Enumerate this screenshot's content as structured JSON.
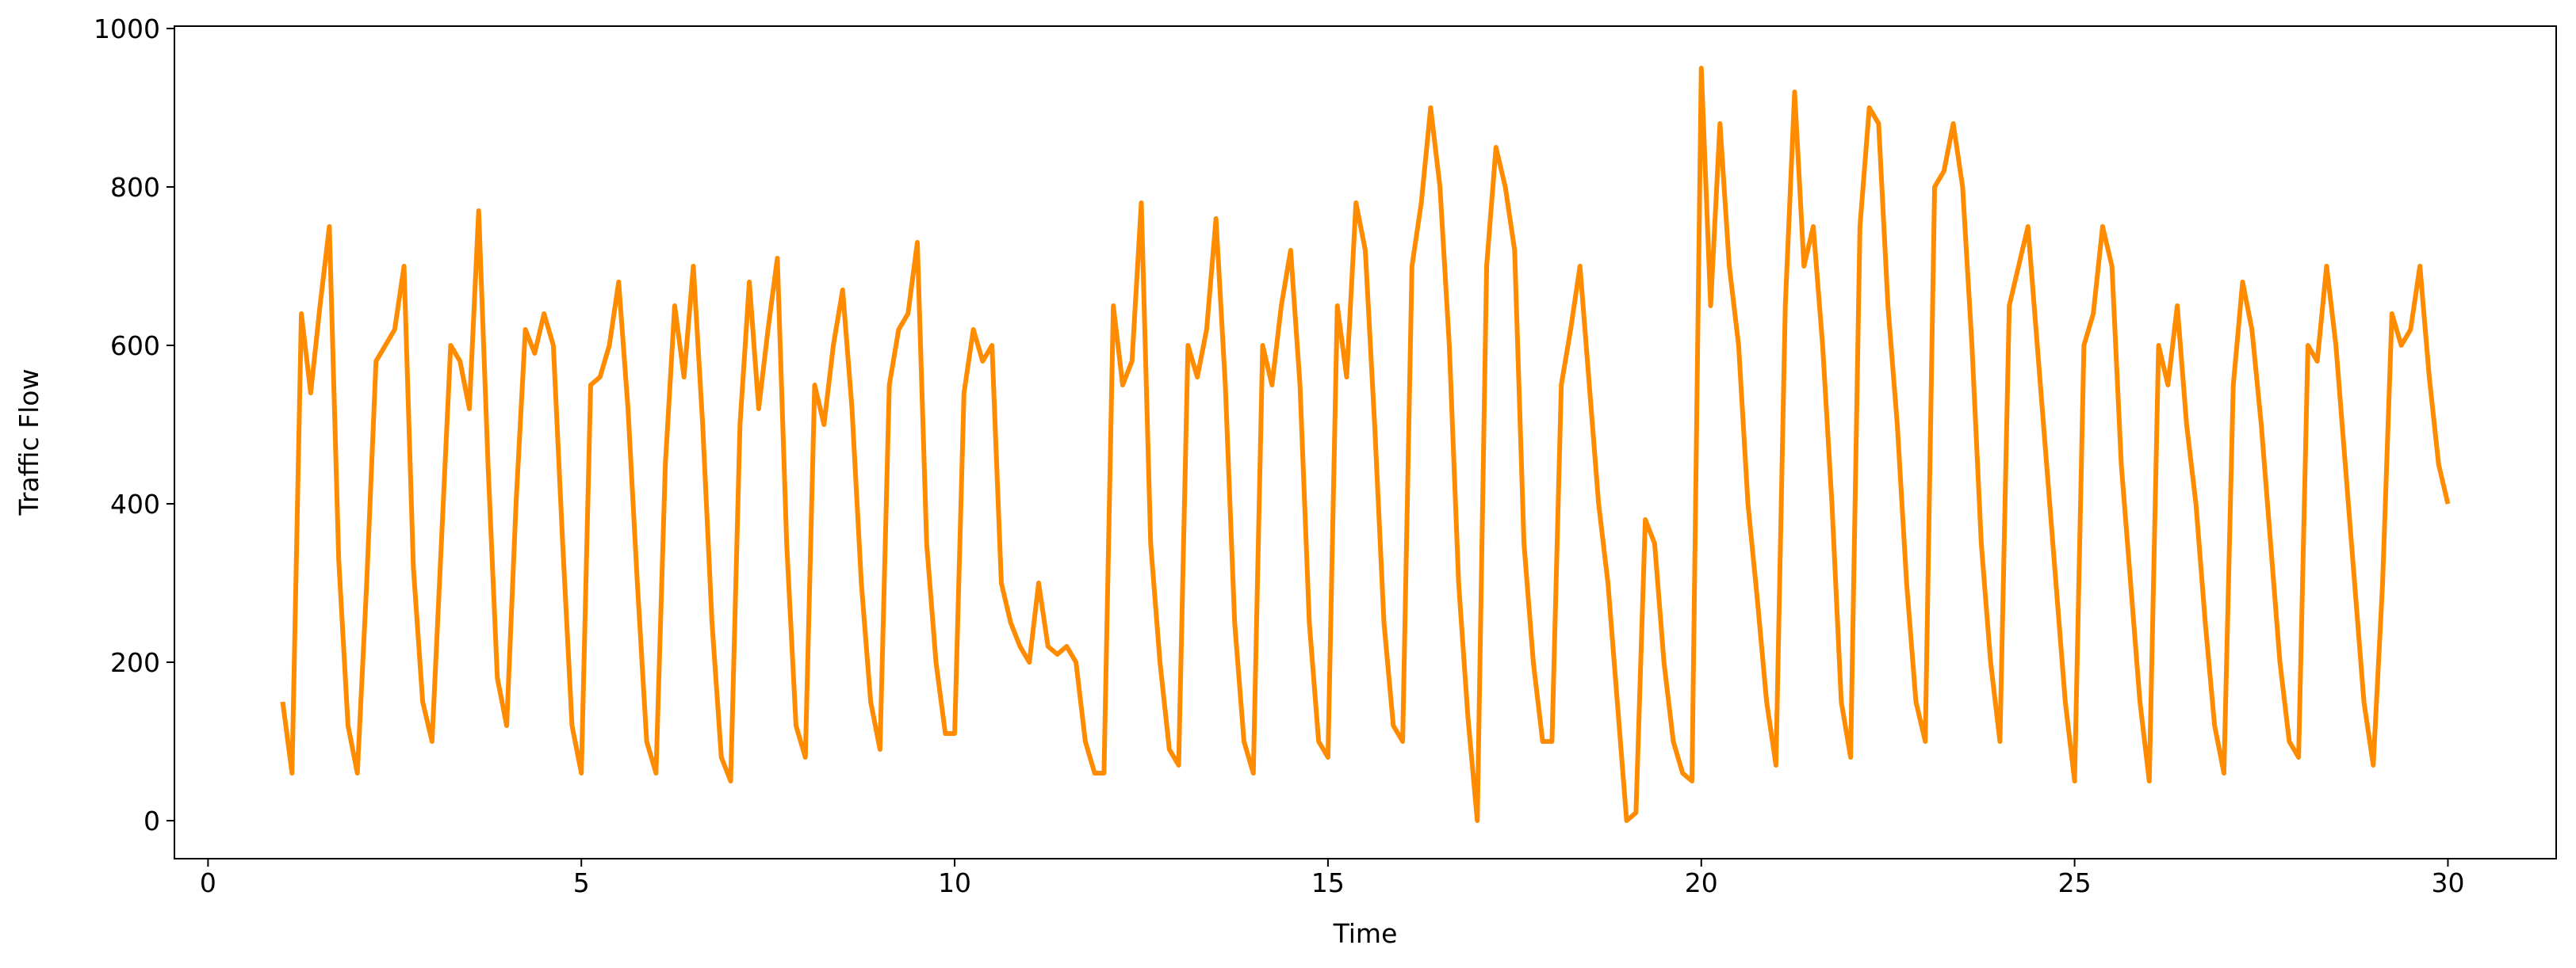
{
  "chart_data": {
    "type": "line",
    "x_label": "Time",
    "y_label": "Traffic Flow",
    "color": "#ff8c00",
    "xlim": [
      -0.45,
      31.45
    ],
    "ylim": [
      -48,
      1003
    ],
    "xticks": [
      0,
      5,
      10,
      15,
      20,
      25,
      30
    ],
    "yticks": [
      0,
      200,
      400,
      600,
      800,
      1000
    ],
    "x": [
      1,
      1.125,
      1.25,
      1.375,
      1.5,
      1.625,
      1.75,
      1.875,
      2,
      2.125,
      2.25,
      2.375,
      2.5,
      2.625,
      2.75,
      2.875,
      3,
      3.125,
      3.25,
      3.375,
      3.5,
      3.625,
      3.75,
      3.875,
      4,
      4.125,
      4.25,
      4.375,
      4.5,
      4.625,
      4.75,
      4.875,
      5,
      5.125,
      5.25,
      5.375,
      5.5,
      5.625,
      5.75,
      5.875,
      6,
      6.125,
      6.25,
      6.375,
      6.5,
      6.625,
      6.75,
      6.875,
      7,
      7.125,
      7.25,
      7.375,
      7.5,
      7.625,
      7.75,
      7.875,
      8,
      8.125,
      8.25,
      8.375,
      8.5,
      8.625,
      8.75,
      8.875,
      9,
      9.125,
      9.25,
      9.375,
      9.5,
      9.625,
      9.75,
      9.875,
      10,
      10.125,
      10.25,
      10.375,
      10.5,
      10.625,
      10.75,
      10.875,
      11,
      11.125,
      11.25,
      11.375,
      11.5,
      11.625,
      11.75,
      11.875,
      12,
      12.125,
      12.25,
      12.375,
      12.5,
      12.625,
      12.75,
      12.875,
      13,
      13.125,
      13.25,
      13.375,
      13.5,
      13.625,
      13.75,
      13.875,
      14,
      14.125,
      14.25,
      14.375,
      14.5,
      14.625,
      14.75,
      14.875,
      15,
      15.125,
      15.25,
      15.375,
      15.5,
      15.625,
      15.75,
      15.875,
      16,
      16.125,
      16.25,
      16.375,
      16.5,
      16.625,
      16.75,
      16.875,
      17,
      17.125,
      17.25,
      17.375,
      17.5,
      17.625,
      17.75,
      17.875,
      18,
      18.125,
      18.25,
      18.375,
      18.5,
      18.625,
      18.75,
      18.875,
      19,
      19.125,
      19.25,
      19.375,
      19.5,
      19.625,
      19.75,
      19.875,
      20,
      20.125,
      20.25,
      20.375,
      20.5,
      20.625,
      20.75,
      20.875,
      21,
      21.125,
      21.25,
      21.375,
      21.5,
      21.625,
      21.75,
      21.875,
      22,
      22.125,
      22.25,
      22.375,
      22.5,
      22.625,
      22.75,
      22.875,
      23,
      23.125,
      23.25,
      23.375,
      23.5,
      23.625,
      23.75,
      23.875,
      24,
      24.125,
      24.25,
      24.375,
      24.5,
      24.625,
      24.75,
      24.875,
      25,
      25.125,
      25.25,
      25.375,
      25.5,
      25.625,
      25.75,
      25.875,
      26,
      26.125,
      26.25,
      26.375,
      26.5,
      26.625,
      26.75,
      26.875,
      27,
      27.125,
      27.25,
      27.375,
      27.5,
      27.625,
      27.75,
      27.875,
      28,
      28.125,
      28.25,
      28.375,
      28.5,
      28.625,
      28.75,
      28.875,
      29,
      29.125,
      29.25,
      29.375,
      29.5,
      29.625,
      29.75,
      29.875,
      30
    ],
    "values": [
      150,
      60,
      640,
      540,
      650,
      750,
      330,
      120,
      60,
      300,
      580,
      600,
      620,
      700,
      320,
      150,
      100,
      350,
      600,
      580,
      520,
      770,
      450,
      180,
      120,
      400,
      620,
      590,
      640,
      600,
      350,
      120,
      60,
      550,
      560,
      600,
      680,
      520,
      300,
      100,
      60,
      450,
      650,
      560,
      700,
      500,
      250,
      80,
      50,
      500,
      680,
      520,
      620,
      710,
      350,
      120,
      80,
      550,
      500,
      600,
      670,
      520,
      300,
      150,
      90,
      550,
      620,
      640,
      730,
      350,
      200,
      110,
      110,
      540,
      620,
      580,
      600,
      300,
      250,
      220,
      200,
      300,
      220,
      210,
      220,
      200,
      100,
      60,
      60,
      650,
      550,
      580,
      780,
      350,
      200,
      90,
      70,
      600,
      560,
      620,
      760,
      550,
      250,
      100,
      60,
      600,
      550,
      650,
      720,
      550,
      250,
      100,
      80,
      650,
      560,
      780,
      720,
      500,
      250,
      120,
      100,
      700,
      780,
      900,
      800,
      600,
      300,
      130,
      0,
      700,
      850,
      800,
      720,
      350,
      200,
      100,
      100,
      550,
      620,
      700,
      550,
      400,
      300,
      150,
      0,
      10,
      380,
      350,
      200,
      100,
      60,
      50,
      950,
      650,
      880,
      700,
      600,
      400,
      280,
      150,
      70,
      650,
      920,
      700,
      750,
      600,
      400,
      150,
      80,
      750,
      900,
      880,
      650,
      500,
      300,
      150,
      100,
      800,
      820,
      880,
      800,
      600,
      350,
      200,
      100,
      650,
      700,
      750,
      600,
      450,
      300,
      150,
      50,
      600,
      640,
      750,
      700,
      450,
      300,
      150,
      50,
      600,
      550,
      650,
      500,
      400,
      250,
      120,
      60,
      550,
      680,
      620,
      500,
      350,
      200,
      100,
      80,
      600,
      580,
      700,
      600,
      450,
      300,
      150,
      70,
      300,
      640,
      600,
      620,
      700,
      560,
      450,
      400
    ]
  }
}
